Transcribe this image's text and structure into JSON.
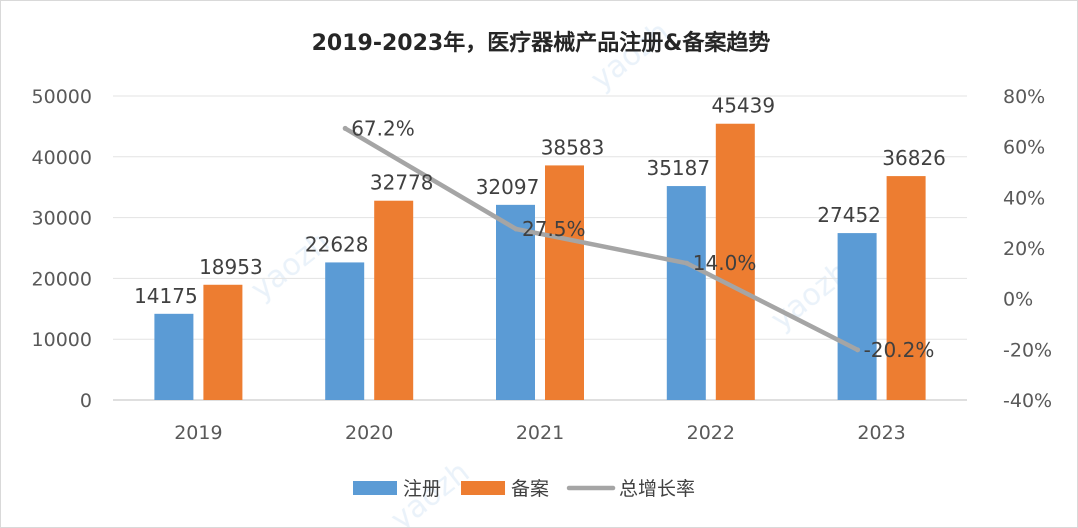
{
  "chart_data": {
    "type": "bar",
    "title": "2019-2023年，医疗器械产品注册&备案趋势",
    "categories": [
      "2019",
      "2020",
      "2021",
      "2022",
      "2023"
    ],
    "series": [
      {
        "name": "注册",
        "kind": "bar",
        "axis": "left",
        "color": "#5b9bd5",
        "values": [
          14175,
          22628,
          32097,
          35187,
          27452
        ]
      },
      {
        "name": "备案",
        "kind": "bar",
        "axis": "left",
        "color": "#ed7d31",
        "values": [
          18953,
          32778,
          38583,
          45439,
          36826
        ]
      },
      {
        "name": "总增长率",
        "kind": "line",
        "axis": "right",
        "color": "#a5a5a5",
        "values": [
          null,
          67.2,
          27.5,
          14.0,
          -20.2
        ],
        "labels": [
          null,
          "67.2%",
          "27.5%",
          "14.0%",
          "-20.2%"
        ]
      }
    ],
    "ylim": [
      0,
      50000
    ],
    "yticks": [
      "0",
      "10000",
      "20000",
      "30000",
      "40000",
      "50000"
    ],
    "y2lim": [
      -40,
      80
    ],
    "y2ticks": [
      "-40%",
      "-20%",
      "0%",
      "20%",
      "40%",
      "60%",
      "80%"
    ],
    "grid": true,
    "legend_position": "bottom"
  }
}
